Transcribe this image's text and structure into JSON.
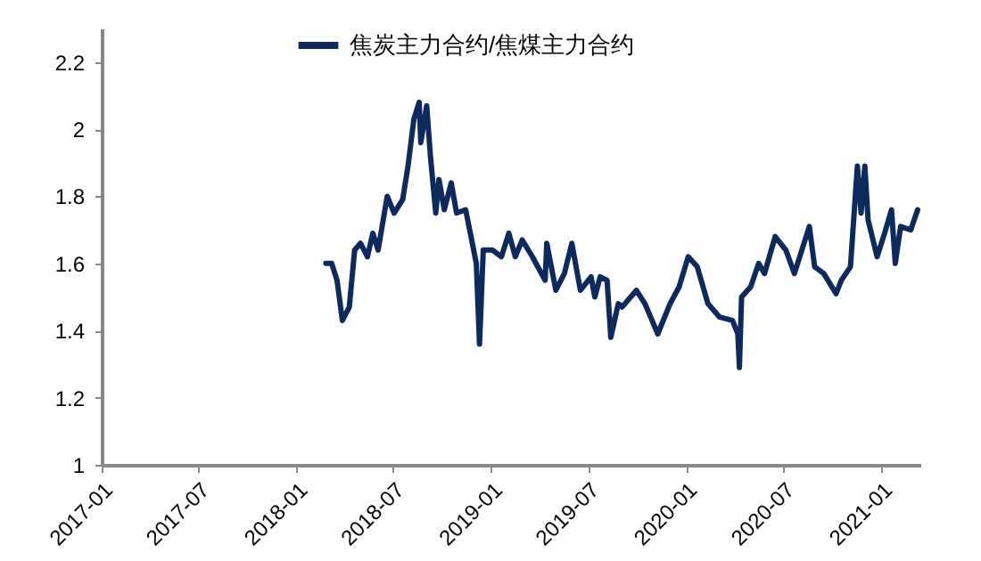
{
  "chart_data": {
    "type": "line",
    "xlim": [
      "2017-01-01",
      "2021-03-15"
    ],
    "xticks": [
      "2017-01",
      "2017-07",
      "2018-01",
      "2018-07",
      "2019-01",
      "2019-07",
      "2020-01",
      "2020-07",
      "2021-01"
    ],
    "ylim": [
      1,
      2.3
    ],
    "yticks": [
      1,
      1.2,
      1.4,
      1.6,
      1.8,
      2,
      2.2
    ],
    "grid": false,
    "legend": "top",
    "marker": "none",
    "line_style": "solid",
    "series": [
      {
        "name": "焦炭主力合约/焦煤主力合约",
        "color": "#0d2a5e",
        "x": [
          "2018-02-25",
          "2018-03-08",
          "2018-03-18",
          "2018-03-28",
          "2018-04-10",
          "2018-04-20",
          "2018-05-01",
          "2018-05-14",
          "2018-05-24",
          "2018-06-03",
          "2018-06-20",
          "2018-07-03",
          "2018-07-19",
          "2018-07-29",
          "2018-08-09",
          "2018-08-19",
          "2018-08-22",
          "2018-09-02",
          "2018-09-09",
          "2018-09-19",
          "2018-09-25",
          "2018-10-05",
          "2018-10-18",
          "2018-10-28",
          "2018-11-14",
          "2018-11-24",
          "2018-12-04",
          "2018-12-10",
          "2018-12-17",
          "2019-01-03",
          "2019-01-20",
          "2019-02-03",
          "2019-02-15",
          "2019-02-28",
          "2019-03-19",
          "2019-04-12",
          "2019-04-15",
          "2019-05-02",
          "2019-05-18",
          "2019-06-01",
          "2019-06-17",
          "2019-07-07",
          "2019-07-14",
          "2019-07-24",
          "2019-08-06",
          "2019-08-13",
          "2019-08-27",
          "2019-09-03",
          "2019-09-30",
          "2019-10-16",
          "2019-11-09",
          "2019-12-02",
          "2019-12-19",
          "2020-01-05",
          "2020-01-22",
          "2020-02-11",
          "2020-03-04",
          "2020-03-28",
          "2020-04-07",
          "2020-04-10",
          "2020-04-14",
          "2020-05-01",
          "2020-05-16",
          "2020-05-27",
          "2020-06-16",
          "2020-07-06",
          "2020-07-22",
          "2020-08-19",
          "2020-08-29",
          "2020-09-15",
          "2020-10-08",
          "2020-10-18",
          "2020-11-04",
          "2020-11-17",
          "2020-11-24",
          "2020-12-01",
          "2020-12-07",
          "2020-12-24",
          "2021-01-07",
          "2021-01-20",
          "2021-01-27",
          "2021-02-06",
          "2021-02-25",
          "2021-03-10"
        ],
        "values": [
          1.6,
          1.6,
          1.55,
          1.43,
          1.47,
          1.64,
          1.66,
          1.62,
          1.69,
          1.64,
          1.8,
          1.75,
          1.79,
          1.89,
          2.03,
          2.08,
          1.96,
          2.07,
          1.92,
          1.75,
          1.85,
          1.76,
          1.84,
          1.75,
          1.76,
          1.68,
          1.6,
          1.36,
          1.64,
          1.64,
          1.62,
          1.69,
          1.62,
          1.67,
          1.62,
          1.55,
          1.66,
          1.52,
          1.57,
          1.66,
          1.52,
          1.56,
          1.5,
          1.56,
          1.55,
          1.38,
          1.48,
          1.47,
          1.52,
          1.48,
          1.39,
          1.48,
          1.53,
          1.62,
          1.59,
          1.48,
          1.44,
          1.43,
          1.39,
          1.29,
          1.5,
          1.53,
          1.6,
          1.57,
          1.68,
          1.64,
          1.57,
          1.71,
          1.59,
          1.57,
          1.51,
          1.55,
          1.59,
          1.89,
          1.75,
          1.89,
          1.73,
          1.62,
          1.69,
          1.76,
          1.6,
          1.71,
          1.7,
          1.76
        ]
      }
    ]
  }
}
